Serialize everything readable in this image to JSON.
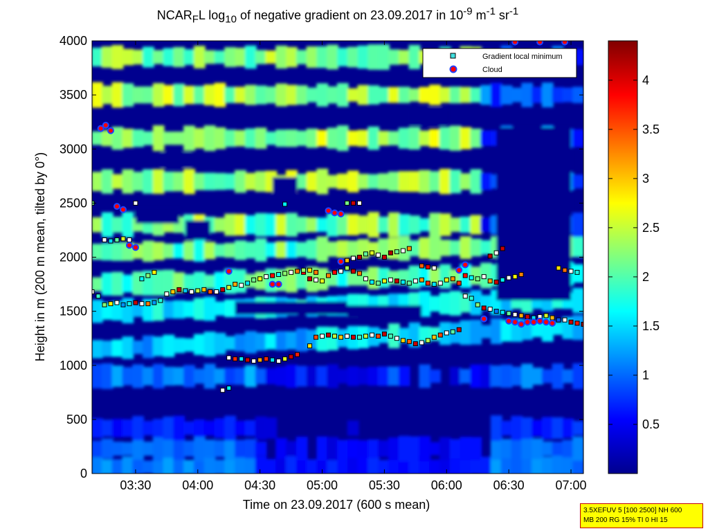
{
  "title": {
    "prefix": "NCAR",
    "sub1": "F",
    "mid": "L log",
    "sub2": "10",
    "rest": " of negative gradient on 23.09.2017 in 10",
    "sup1": "-9",
    "unit1": " m",
    "sup2": "-1",
    "unit2": " sr",
    "sup3": "-1"
  },
  "info_box": {
    "line1": "3.5XEFUV 5 [100 2500] NH 600",
    "line2": "MB 200 RG 15% TI 0 HI 15"
  },
  "colors": {
    "cloud_fill": "#ff0000",
    "cloud_edge": "#2040ff",
    "marker_edge": "#000000"
  },
  "chart_data": {
    "type": "heatmap",
    "xlabel": "Time on 23.09.2017 (600 s mean)",
    "ylabel": "Height in m (200 m mean, tilted by 0°)",
    "x_ticks": [
      "03:30",
      "04:00",
      "04:30",
      "05:00",
      "05:30",
      "06:00",
      "06:30",
      "07:00"
    ],
    "x_tick_hours": [
      3.5,
      4.0,
      4.5,
      5.0,
      5.5,
      6.0,
      6.5,
      7.0
    ],
    "xlim_hours": [
      3.15,
      7.1
    ],
    "y_ticks": [
      0,
      500,
      1000,
      1500,
      2000,
      2500,
      3000,
      3500,
      4000
    ],
    "ylim": [
      0,
      4000
    ],
    "colorbar": {
      "ticks": [
        0.5,
        1,
        1.5,
        2,
        2.5,
        3,
        3.5,
        4
      ],
      "tick_labels": [
        "0.5",
        "1",
        "1.5",
        "2",
        "2.5",
        "3",
        "3.5",
        "4"
      ],
      "range": [
        0,
        4.4
      ],
      "colormap": "jet"
    },
    "legend": {
      "position": "top-right",
      "entries": [
        "Gradient local minimum",
        "Cloud"
      ]
    },
    "grid": false,
    "series": [
      {
        "name": "Gradient local minimum",
        "points": [
          [
            3.15,
            1680
          ],
          [
            3.2,
            1640
          ],
          [
            3.25,
            1560
          ],
          [
            3.3,
            1570
          ],
          [
            3.35,
            1580
          ],
          [
            3.4,
            1560
          ],
          [
            3.45,
            1570
          ],
          [
            3.5,
            1580
          ],
          [
            3.55,
            1570
          ],
          [
            3.6,
            1570
          ],
          [
            3.65,
            1580
          ],
          [
            3.7,
            1600
          ],
          [
            3.75,
            1660
          ],
          [
            3.8,
            1680
          ],
          [
            3.85,
            1700
          ],
          [
            3.9,
            1690
          ],
          [
            3.95,
            1680
          ],
          [
            4.0,
            1690
          ],
          [
            4.05,
            1700
          ],
          [
            4.1,
            1680
          ],
          [
            4.15,
            1680
          ],
          [
            4.2,
            1700
          ],
          [
            4.25,
            1720
          ],
          [
            4.3,
            1750
          ],
          [
            4.35,
            1740
          ],
          [
            4.4,
            1760
          ],
          [
            4.45,
            1790
          ],
          [
            4.5,
            1800
          ],
          [
            4.55,
            1820
          ],
          [
            4.6,
            1830
          ],
          [
            4.65,
            1840
          ],
          [
            4.7,
            1850
          ],
          [
            4.75,
            1860
          ],
          [
            4.8,
            1870
          ],
          [
            4.85,
            1860
          ],
          [
            4.9,
            1800
          ],
          [
            4.95,
            1790
          ],
          [
            5.0,
            1780
          ],
          [
            5.05,
            1830
          ],
          [
            5.1,
            1860
          ],
          [
            5.15,
            1870
          ],
          [
            5.2,
            1900
          ],
          [
            5.25,
            1870
          ],
          [
            5.3,
            1850
          ],
          [
            5.35,
            1800
          ],
          [
            5.4,
            1770
          ],
          [
            5.45,
            1760
          ],
          [
            5.5,
            1780
          ],
          [
            5.55,
            1790
          ],
          [
            5.6,
            1780
          ],
          [
            5.65,
            1770
          ],
          [
            5.7,
            1760
          ],
          [
            5.75,
            1780
          ],
          [
            5.8,
            1790
          ],
          [
            5.85,
            1760
          ],
          [
            5.9,
            1750
          ],
          [
            5.95,
            1760
          ],
          [
            6.0,
            1790
          ],
          [
            6.05,
            1800
          ],
          [
            6.1,
            1760
          ],
          [
            6.15,
            1640
          ],
          [
            6.2,
            1620
          ],
          [
            6.25,
            1560
          ],
          [
            6.3,
            1530
          ],
          [
            6.35,
            1520
          ],
          [
            6.4,
            1500
          ],
          [
            6.45,
            1490
          ],
          [
            6.5,
            1480
          ],
          [
            6.55,
            1470
          ],
          [
            6.6,
            1460
          ],
          [
            6.65,
            1450
          ],
          [
            6.7,
            1440
          ],
          [
            6.75,
            1450
          ],
          [
            6.8,
            1460
          ],
          [
            6.85,
            1440
          ],
          [
            6.9,
            1420
          ],
          [
            6.95,
            1420
          ],
          [
            7.0,
            1400
          ],
          [
            7.05,
            1390
          ],
          [
            7.1,
            1380
          ],
          [
            3.25,
            2160
          ],
          [
            3.3,
            2150
          ],
          [
            3.35,
            2160
          ],
          [
            3.4,
            2170
          ],
          [
            3.45,
            2160
          ],
          [
            3.55,
            1800
          ],
          [
            3.6,
            1830
          ],
          [
            3.65,
            1860
          ],
          [
            4.25,
            1070
          ],
          [
            4.3,
            1060
          ],
          [
            4.35,
            1060
          ],
          [
            4.4,
            1050
          ],
          [
            4.45,
            1040
          ],
          [
            4.5,
            1050
          ],
          [
            4.55,
            1060
          ],
          [
            4.6,
            1050
          ],
          [
            4.65,
            1040
          ],
          [
            4.7,
            1060
          ],
          [
            4.75,
            1080
          ],
          [
            4.8,
            1100
          ],
          [
            4.2,
            770
          ],
          [
            4.25,
            790
          ],
          [
            4.9,
            1180
          ],
          [
            4.95,
            1260
          ],
          [
            5.0,
            1270
          ],
          [
            5.05,
            1280
          ],
          [
            5.1,
            1270
          ],
          [
            5.15,
            1260
          ],
          [
            5.2,
            1270
          ],
          [
            5.25,
            1260
          ],
          [
            5.3,
            1260
          ],
          [
            5.35,
            1270
          ],
          [
            5.4,
            1280
          ],
          [
            5.45,
            1270
          ],
          [
            5.5,
            1290
          ],
          [
            5.55,
            1270
          ],
          [
            5.6,
            1250
          ],
          [
            5.65,
            1230
          ],
          [
            5.7,
            1220
          ],
          [
            5.75,
            1200
          ],
          [
            5.8,
            1210
          ],
          [
            5.85,
            1230
          ],
          [
            5.9,
            1260
          ],
          [
            5.95,
            1280
          ],
          [
            6.0,
            1300
          ],
          [
            6.05,
            1310
          ],
          [
            6.1,
            1330
          ],
          [
            5.2,
            1970
          ],
          [
            5.25,
            1990
          ],
          [
            5.3,
            2000
          ],
          [
            5.35,
            2030
          ],
          [
            5.4,
            2040
          ],
          [
            5.45,
            2020
          ],
          [
            5.5,
            2000
          ],
          [
            5.55,
            2040
          ],
          [
            5.6,
            2050
          ],
          [
            5.65,
            2060
          ],
          [
            5.7,
            2080
          ],
          [
            5.8,
            1920
          ],
          [
            5.85,
            1910
          ],
          [
            5.9,
            1900
          ],
          [
            4.85,
            1880
          ],
          [
            4.9,
            1880
          ],
          [
            4.95,
            1860
          ],
          [
            3.5,
            2500
          ],
          [
            4.7,
            2490
          ],
          [
            5.2,
            2500
          ],
          [
            5.25,
            2500
          ],
          [
            5.3,
            2500
          ],
          [
            6.15,
            1830
          ],
          [
            6.2,
            1810
          ],
          [
            6.25,
            1800
          ],
          [
            6.3,
            1820
          ],
          [
            6.35,
            1780
          ],
          [
            6.4,
            1770
          ],
          [
            6.45,
            1790
          ],
          [
            6.5,
            1810
          ],
          [
            6.55,
            1820
          ],
          [
            6.6,
            1840
          ],
          [
            6.35,
            2010
          ],
          [
            6.4,
            2040
          ],
          [
            6.45,
            2080
          ],
          [
            6.9,
            1900
          ],
          [
            6.95,
            1880
          ],
          [
            7.0,
            1870
          ],
          [
            7.05,
            1860
          ],
          [
            3.15,
            2500
          ]
        ]
      },
      {
        "name": "Cloud",
        "points": [
          [
            3.22,
            3190
          ],
          [
            3.26,
            3220
          ],
          [
            3.3,
            3170
          ],
          [
            6.3,
            1430
          ],
          [
            6.5,
            1410
          ],
          [
            6.55,
            1400
          ],
          [
            6.6,
            1380
          ],
          [
            6.65,
            1400
          ],
          [
            6.7,
            1400
          ],
          [
            6.75,
            1410
          ],
          [
            6.8,
            1400
          ],
          [
            6.85,
            1390
          ],
          [
            5.05,
            2430
          ],
          [
            5.1,
            2410
          ],
          [
            5.15,
            2400
          ],
          [
            3.35,
            2470
          ],
          [
            3.4,
            2440
          ],
          [
            6.55,
            3990
          ],
          [
            6.75,
            3990
          ],
          [
            6.95,
            3990
          ],
          [
            3.45,
            2110
          ],
          [
            3.5,
            2090
          ],
          [
            4.6,
            1750
          ],
          [
            4.65,
            1750
          ],
          [
            6.1,
            1880
          ],
          [
            6.15,
            1930
          ],
          [
            5.15,
            1960
          ],
          [
            4.25,
            1870
          ]
        ]
      }
    ]
  }
}
